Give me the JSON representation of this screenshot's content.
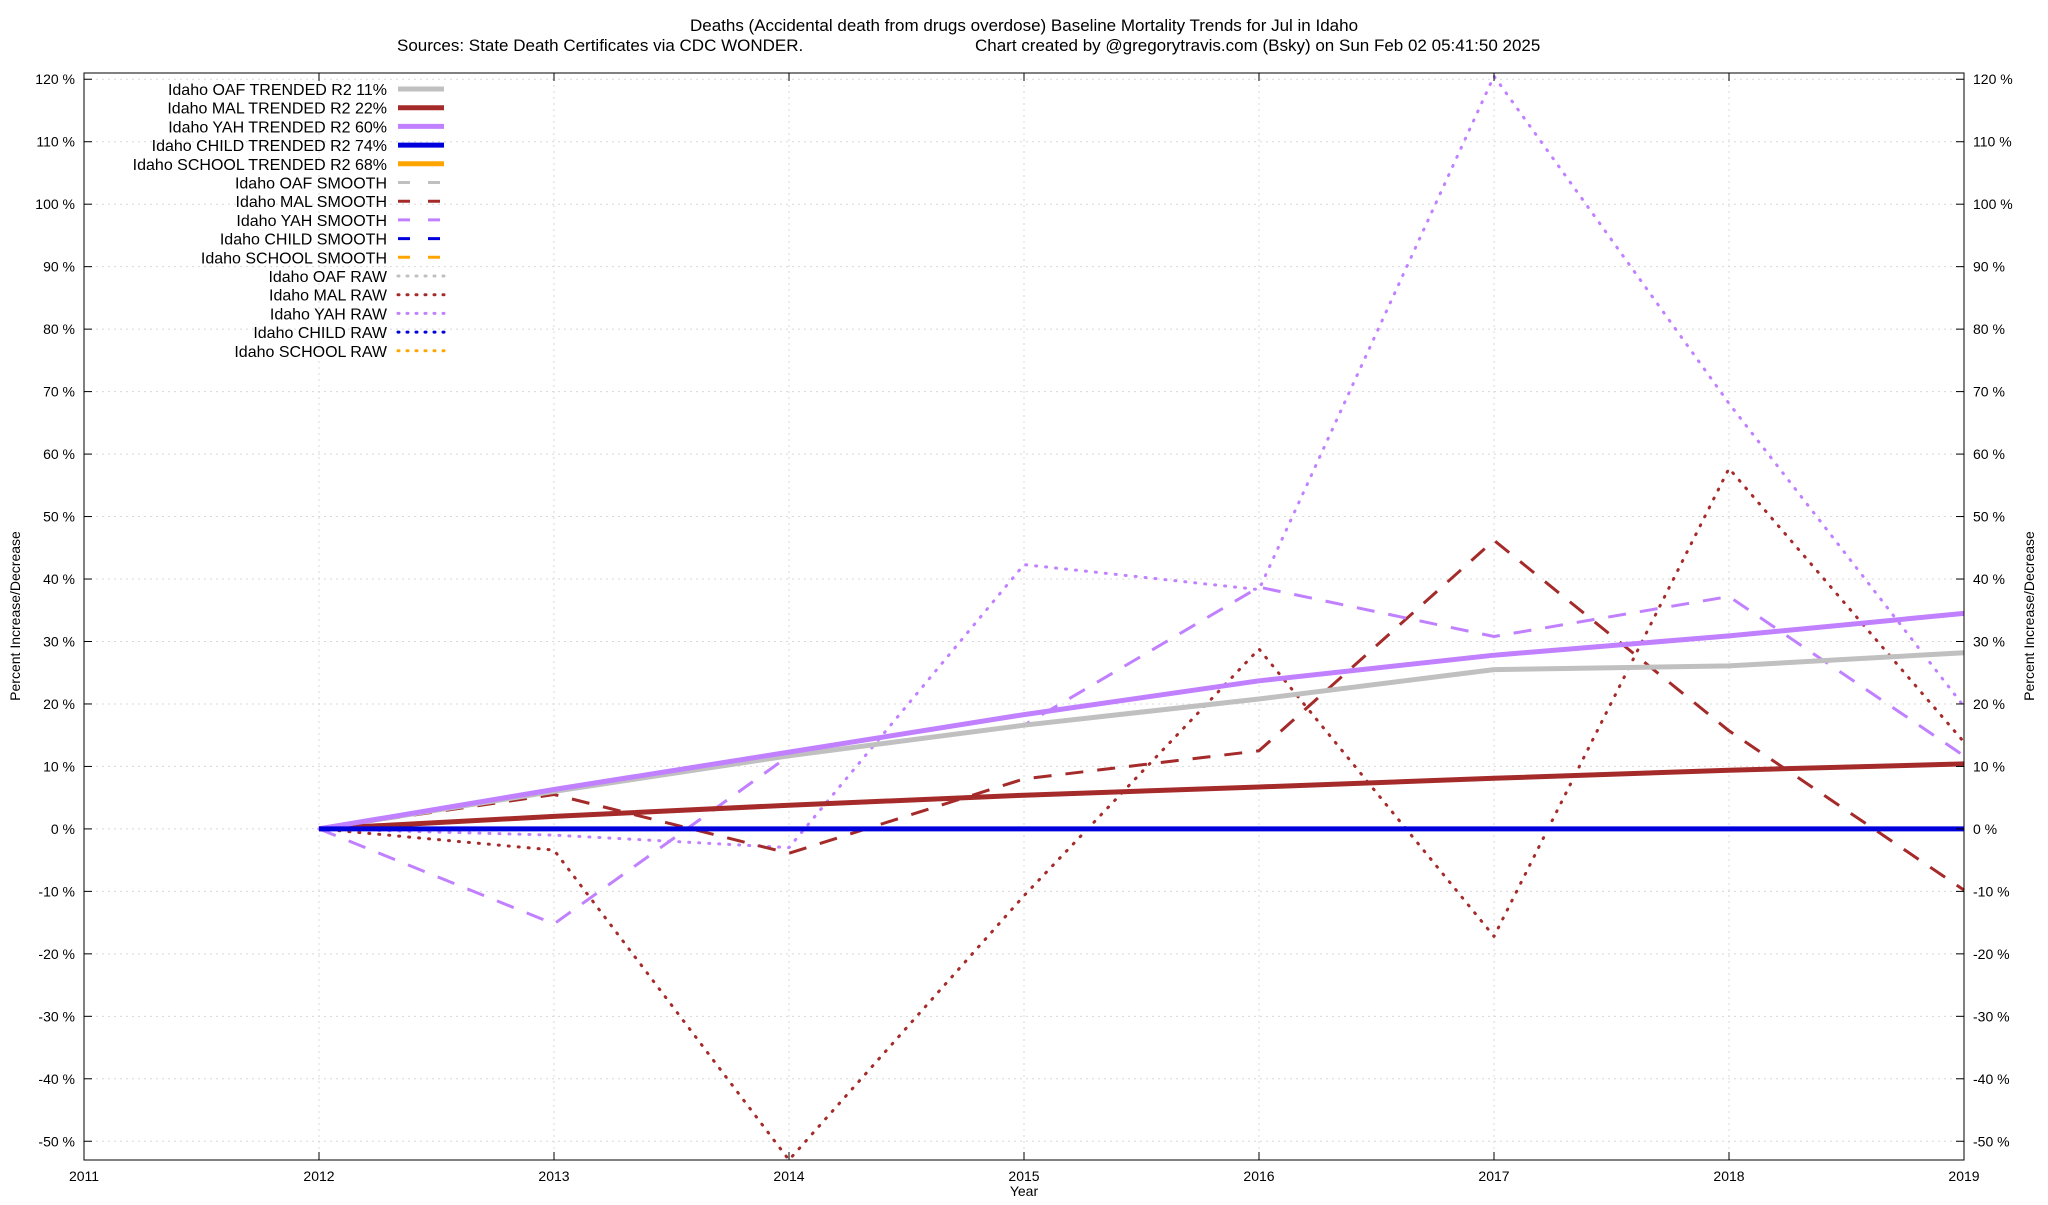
{
  "chart_data": {
    "type": "line",
    "title": "Deaths (Accidental death from drugs overdose)  Baseline Mortality Trends for Jul in Idaho",
    "subtitle_left": "Sources: State Death Certificates via CDC WONDER.",
    "subtitle_right": "Chart created by @gregorytravis.com (Bsky) on Sun Feb 02 05:41:50 2025",
    "xlabel": "Year",
    "ylabel_left": "Percent Increase/Decrease",
    "ylabel_right": "Percent Increase/Decrease",
    "xlim": [
      2011,
      2019
    ],
    "ylim": [
      -53,
      121
    ],
    "x_ticks": [
      2011,
      2012,
      2013,
      2014,
      2015,
      2016,
      2017,
      2018,
      2019
    ],
    "x_tick_labels": [
      "2011",
      "2012",
      "2013",
      "2014",
      "2015",
      "2016",
      "2017",
      "2018",
      "2019"
    ],
    "y_ticks": [
      120,
      110,
      100,
      90,
      80,
      70,
      60,
      50,
      40,
      30,
      20,
      10,
      0,
      -10,
      -20,
      -30,
      -40,
      -50
    ],
    "y_tick_labels": [
      "120 %",
      "110 %",
      "100 %",
      "90 %",
      "80 %",
      "70 %",
      "60 %",
      "50 %",
      "40 %",
      "30 %",
      "20 %",
      "10 %",
      "0 %",
      "-10 %",
      "-20 %",
      "-30 %",
      "-40 %",
      "-50 %"
    ],
    "grid": true,
    "legend_position": "top-left",
    "series": [
      {
        "name": "Idaho OAF TRENDED R2  11%",
        "style": "solid",
        "color": "#c0c0c0",
        "x": [
          2012,
          2013,
          2014,
          2015,
          2016,
          2017,
          2018,
          2019
        ],
        "y": [
          0,
          6.0,
          11.7,
          16.6,
          20.8,
          25.5,
          26.1,
          28.2
        ]
      },
      {
        "name": "Idaho MAL TRENDED R2  22%",
        "style": "solid",
        "color": "#a52a2a",
        "x": [
          2012,
          2013,
          2014,
          2015,
          2016,
          2017,
          2018,
          2019
        ],
        "y": [
          0,
          2.0,
          3.8,
          5.4,
          6.7,
          8.1,
          9.4,
          10.4
        ]
      },
      {
        "name": "Idaho YAH TRENDED R2  60%",
        "style": "solid",
        "color": "#c080ff",
        "x": [
          2012,
          2013,
          2014,
          2015,
          2016,
          2017,
          2018,
          2019
        ],
        "y": [
          0,
          6.3,
          12.3,
          18.3,
          23.7,
          27.8,
          30.9,
          34.5
        ]
      },
      {
        "name": "Idaho CHILD TRENDED R2  74%",
        "style": "solid",
        "color": "#0000dd",
        "x": [
          2012,
          2019
        ],
        "y": [
          0,
          0
        ]
      },
      {
        "name": "Idaho SCHOOL TRENDED R2  68%",
        "style": "solid",
        "color": "#ffa500",
        "x": [],
        "y": []
      },
      {
        "name": "Idaho OAF SMOOTH",
        "style": "dashed",
        "color": "#c0c0c0",
        "x": [],
        "y": []
      },
      {
        "name": "Idaho MAL SMOOTH",
        "style": "dashed",
        "color": "#a52a2a",
        "x": [
          2012,
          2013,
          2014,
          2015,
          2016,
          2017,
          2018,
          2019
        ],
        "y": [
          0,
          5.5,
          -3.9,
          8.0,
          12.5,
          46.2,
          15.7,
          -9.8
        ]
      },
      {
        "name": "Idaho YAH SMOOTH",
        "style": "dashed",
        "color": "#c080ff",
        "x": [
          2012,
          2013,
          2014,
          2015,
          2016,
          2017,
          2018,
          2019
        ],
        "y": [
          0,
          -15.2,
          11.7,
          16.6,
          38.7,
          30.8,
          37.2,
          11.7
        ]
      },
      {
        "name": "Idaho CHILD SMOOTH",
        "style": "dashed",
        "color": "#0000dd",
        "x": [],
        "y": []
      },
      {
        "name": "Idaho SCHOOL SMOOTH",
        "style": "dashed",
        "color": "#ffa500",
        "x": [],
        "y": []
      },
      {
        "name": "Idaho OAF RAW",
        "style": "dotted",
        "color": "#c0c0c0",
        "x": [],
        "y": []
      },
      {
        "name": "Idaho MAL RAW",
        "style": "dotted",
        "color": "#a52a2a",
        "x": [
          2012,
          2013,
          2014,
          2015,
          2016,
          2017,
          2018,
          2019
        ],
        "y": [
          0,
          -3.4,
          -53.0,
          -10.7,
          28.8,
          -17.2,
          57.7,
          13.9
        ]
      },
      {
        "name": "Idaho YAH RAW",
        "style": "dotted",
        "color": "#c080ff",
        "x": [
          2012,
          2013,
          2014,
          2015,
          2016,
          2017,
          2018,
          2019
        ],
        "y": [
          0,
          -1.0,
          -3.0,
          42.3,
          38.3,
          120.5,
          68.1,
          19.6
        ]
      },
      {
        "name": "Idaho CHILD RAW",
        "style": "dotted",
        "color": "#0000dd",
        "x": [],
        "y": []
      },
      {
        "name": "Idaho SCHOOL RAW",
        "style": "dotted",
        "color": "#ffa500",
        "x": [],
        "y": []
      }
    ]
  }
}
